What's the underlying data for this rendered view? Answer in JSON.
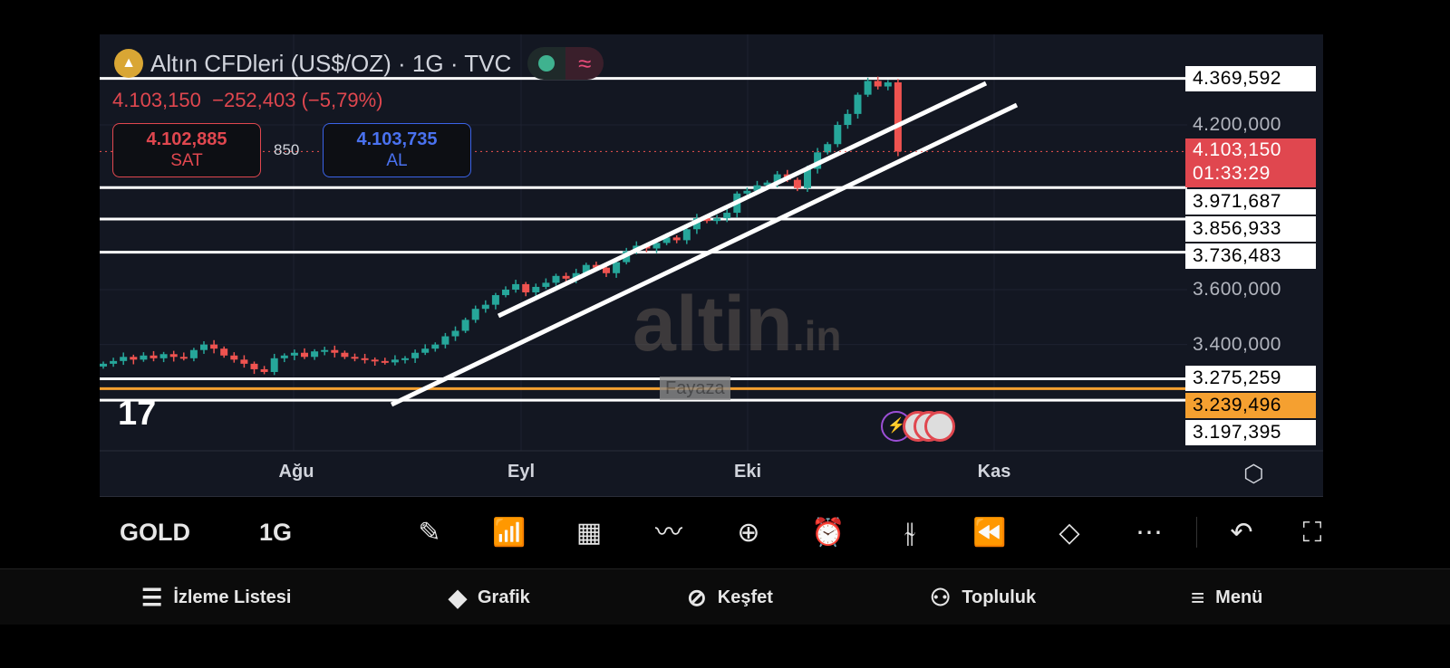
{
  "header": {
    "title": "Altın CFDleri (US$/OZ) · 1G · TVC",
    "last": "4.103,150",
    "change": "−252,403 (−5,79%)"
  },
  "sell": {
    "price": "4.102,885",
    "label": "SAT"
  },
  "buy": {
    "price": "4.103,735",
    "label": "AL"
  },
  "spread": "850",
  "price_axis": {
    "ticks": [
      "4.200,000",
      "3.600,000",
      "3.400,000"
    ],
    "current": {
      "price": "4.103,150",
      "countdown": "01:33:29"
    },
    "levels": [
      {
        "value": 4369.592,
        "label": "4.369,592",
        "color": "#ffffff"
      },
      {
        "value": 3971.687,
        "label": "3.971,687",
        "color": "#ffffff"
      },
      {
        "value": 3856.933,
        "label": "3.856,933",
        "color": "#ffffff"
      },
      {
        "value": 3736.483,
        "label": "3.736,483",
        "color": "#ffffff"
      },
      {
        "value": 3275.259,
        "label": "3.275,259",
        "color": "#ffffff"
      },
      {
        "value": 3239.496,
        "label": "3.239,496",
        "color": "#f5a030"
      },
      {
        "value": 3197.395,
        "label": "3.197,395",
        "color": "#ffffff"
      }
    ]
  },
  "time_axis": [
    "Ağu",
    "Eyl",
    "Eki",
    "Kas"
  ],
  "watermark": {
    "brand": "altin",
    "tld": ".in",
    "user": "Fayaza"
  },
  "colors": {
    "up": "#26a69a",
    "down": "#ef5350",
    "background": "#131722"
  },
  "chart_data": {
    "type": "candlestick",
    "closes": [
      3330,
      3340,
      3355,
      3345,
      3360,
      3350,
      3365,
      3355,
      3350,
      3380,
      3400,
      3385,
      3360,
      3345,
      3330,
      3310,
      3300,
      3350,
      3360,
      3370,
      3355,
      3375,
      3380,
      3370,
      3355,
      3350,
      3345,
      3340,
      3335,
      3345,
      3350,
      3370,
      3385,
      3400,
      3430,
      3450,
      3490,
      3530,
      3545,
      3580,
      3600,
      3620,
      3590,
      3610,
      3625,
      3650,
      3640,
      3660,
      3690,
      3680,
      3660,
      3700,
      3740,
      3760,
      3750,
      3770,
      3790,
      3780,
      3820,
      3860,
      3850,
      3860,
      3880,
      3950,
      3960,
      3980,
      3990,
      4020,
      4000,
      3970,
      4040,
      4100,
      4130,
      4200,
      4240,
      4310,
      4360,
      4340,
      4355,
      4103.15
    ]
  },
  "toolbar": {
    "symbol": "GOLD",
    "interval": "1G",
    "icons": [
      "pencil-icon",
      "indicators-icon",
      "layouts-icon",
      "pattern-icon",
      "add-icon",
      "alarm-icon",
      "candles-icon",
      "replay-icon",
      "layers-icon",
      "more-icon",
      "undo-icon"
    ]
  },
  "nav": [
    {
      "label": "İzleme Listesi",
      "icon": "watchlist-icon"
    },
    {
      "label": "Grafik",
      "icon": "chart-icon"
    },
    {
      "label": "Keşfet",
      "icon": "compass-icon"
    },
    {
      "label": "Topluluk",
      "icon": "community-icon"
    },
    {
      "label": "Menü",
      "icon": "menu-icon"
    }
  ]
}
